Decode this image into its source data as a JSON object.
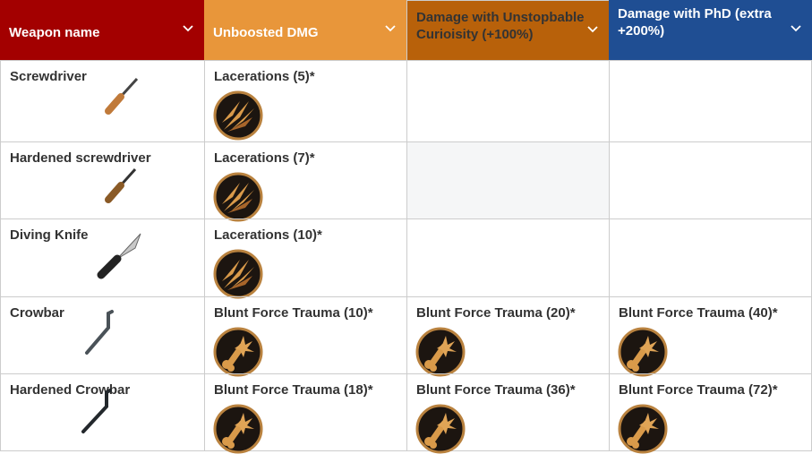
{
  "table": {
    "headers": [
      "Weapon name",
      "Unboosted DMG",
      "Damage with Unstopbable Curioisity (+100%)",
      "Damage with PhD (extra +200%)"
    ],
    "rows": [
      [
        "Screwdriver",
        "Lacerations (5)*",
        null,
        null
      ],
      [
        "Hardened screwdriver",
        "Lacerations (7)*",
        null,
        null
      ],
      [
        "Diving Knife",
        "Lacerations (10)*",
        null,
        null
      ],
      [
        "Crowbar",
        "Blunt Force Trauma (10)*",
        "Blunt Force Trauma (20)*",
        "Blunt Force Trauma (40)*"
      ],
      [
        "Hardened Crowbar",
        "Blunt Force Trauma (18)*",
        "Blunt Force Trauma (36)*",
        "Blunt Force Trauma (72)*"
      ]
    ]
  }
}
